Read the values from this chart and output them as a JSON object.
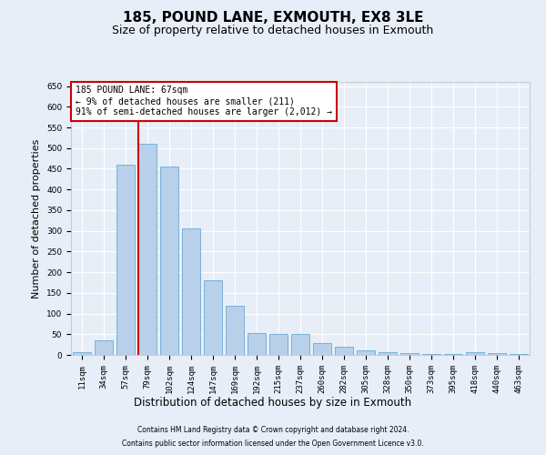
{
  "title": "185, POUND LANE, EXMOUTH, EX8 3LE",
  "subtitle": "Size of property relative to detached houses in Exmouth",
  "xlabel": "Distribution of detached houses by size in Exmouth",
  "ylabel": "Number of detached properties",
  "categories": [
    "11sqm",
    "34sqm",
    "57sqm",
    "79sqm",
    "102sqm",
    "124sqm",
    "147sqm",
    "169sqm",
    "192sqm",
    "215sqm",
    "237sqm",
    "260sqm",
    "282sqm",
    "305sqm",
    "328sqm",
    "350sqm",
    "373sqm",
    "395sqm",
    "418sqm",
    "440sqm",
    "463sqm"
  ],
  "values": [
    6,
    35,
    460,
    510,
    455,
    305,
    180,
    118,
    52,
    50,
    50,
    28,
    20,
    12,
    6,
    4,
    2,
    2,
    6,
    5,
    2
  ],
  "bar_color": "#b8d0ea",
  "bar_edge_color": "#6aaad4",
  "bg_color": "#e8eef8",
  "grid_color": "#ffffff",
  "red_line_x": 2.575,
  "annotation_text": "185 POUND LANE: 67sqm\n← 9% of detached houses are smaller (211)\n91% of semi-detached houses are larger (2,012) →",
  "annotation_box_color": "#ffffff",
  "annotation_box_edge": "#cc0000",
  "ylim": [
    0,
    660
  ],
  "yticks": [
    0,
    50,
    100,
    150,
    200,
    250,
    300,
    350,
    400,
    450,
    500,
    550,
    600,
    650
  ],
  "footer1": "Contains HM Land Registry data © Crown copyright and database right 2024.",
  "footer2": "Contains public sector information licensed under the Open Government Licence v3.0.",
  "title_fontsize": 11,
  "subtitle_fontsize": 9,
  "tick_fontsize": 6.5,
  "ylabel_fontsize": 8,
  "xlabel_fontsize": 8.5,
  "annotation_fontsize": 7,
  "footer_fontsize": 5.5
}
